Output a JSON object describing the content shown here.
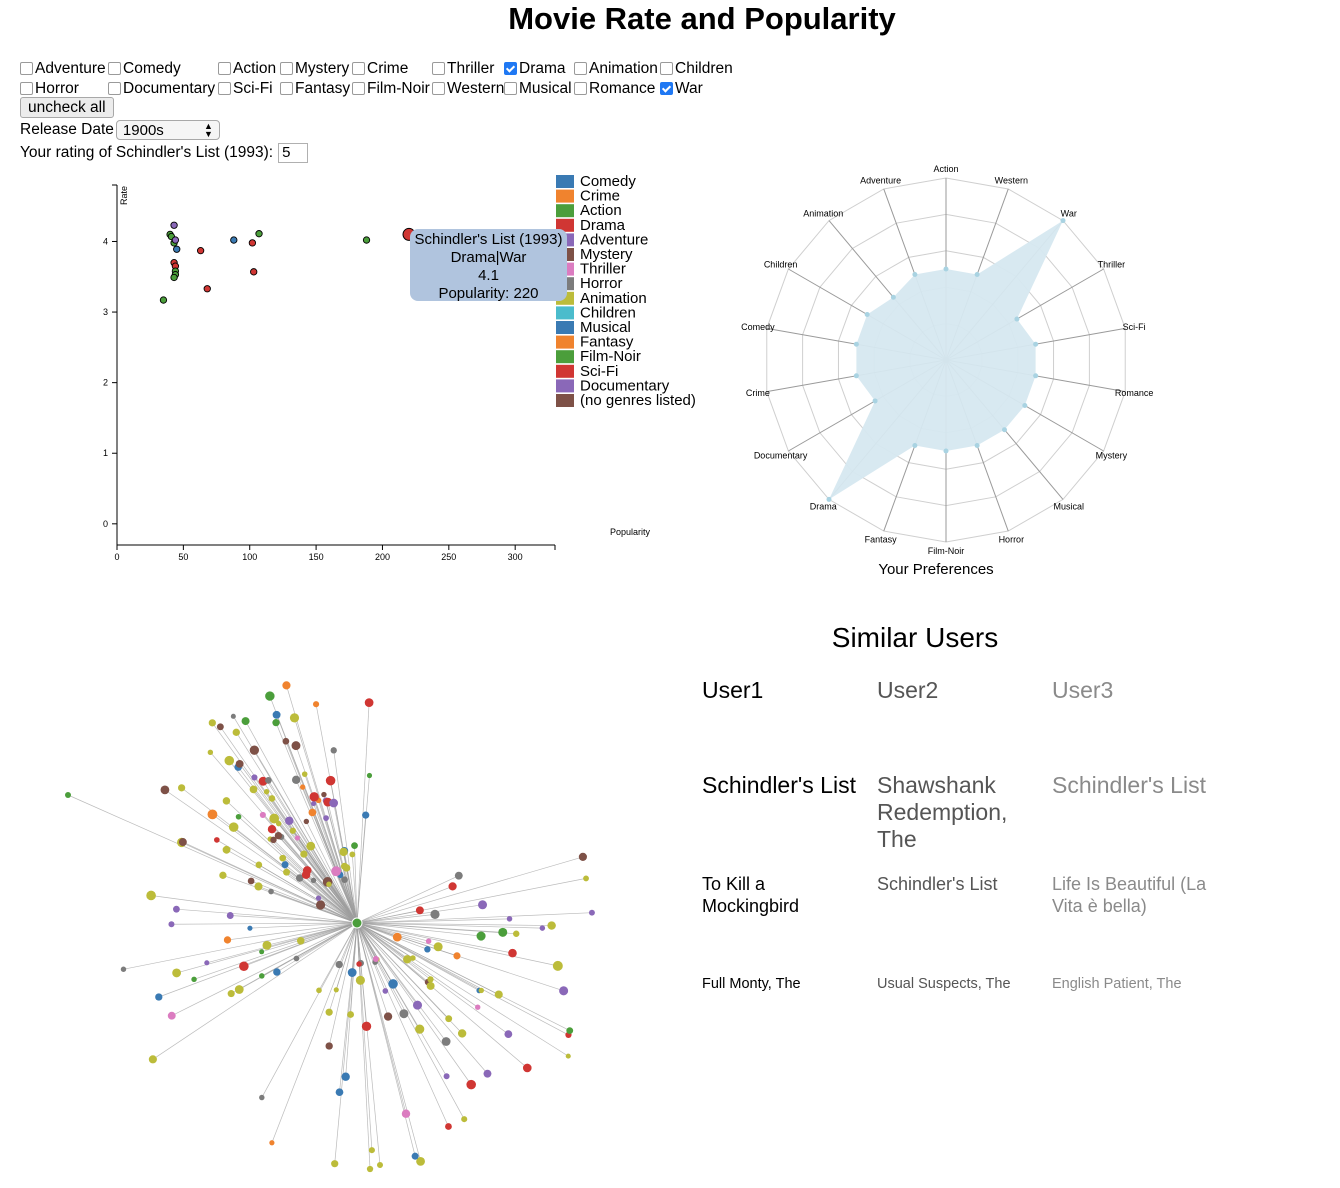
{
  "page": {
    "title": "Movie Rate and Popularity"
  },
  "genres": [
    {
      "label": "Adventure",
      "checked": false
    },
    {
      "label": "Comedy",
      "checked": false
    },
    {
      "label": "Action",
      "checked": false
    },
    {
      "label": "Mystery",
      "checked": false
    },
    {
      "label": "Crime",
      "checked": false
    },
    {
      "label": "Thriller",
      "checked": false
    },
    {
      "label": "Drama",
      "checked": true
    },
    {
      "label": "Animation",
      "checked": false
    },
    {
      "label": "Children",
      "checked": false
    },
    {
      "label": "Horror",
      "checked": false
    },
    {
      "label": "Documentary",
      "checked": false
    },
    {
      "label": "Sci-Fi",
      "checked": false
    },
    {
      "label": "Fantasy",
      "checked": false
    },
    {
      "label": "Film-Noir",
      "checked": false
    },
    {
      "label": "Western",
      "checked": false
    },
    {
      "label": "Musical",
      "checked": false
    },
    {
      "label": "Romance",
      "checked": false
    },
    {
      "label": "War",
      "checked": true
    }
  ],
  "controls": {
    "uncheck_all_label": "uncheck all",
    "release_date_label": "Release Date",
    "release_date_value": "1900s",
    "rating_label": "Your rating of Schindler's List (1993):",
    "rating_value": "5"
  },
  "colors": {
    "checkbox_checked": "#1f78f3",
    "tooltip_bg": "#b0c4de",
    "radar_fill": "#d6e8f0",
    "radar_dot": "#a9d3e2"
  },
  "chart_data": [
    {
      "type": "scatter",
      "xlabel": "Popularity",
      "ylabel": "Rate",
      "xlim": [
        0,
        330
      ],
      "ylim": [
        -0.3,
        4.8
      ],
      "x_ticks": [
        0,
        50,
        100,
        150,
        200,
        250,
        300
      ],
      "y_ticks": [
        0,
        1,
        2,
        3,
        4
      ],
      "points": [
        {
          "x": 35,
          "y": 3.17,
          "genre": "Action"
        },
        {
          "x": 40,
          "y": 4.1,
          "genre": "Action"
        },
        {
          "x": 41,
          "y": 4.07,
          "genre": "Action"
        },
        {
          "x": 43,
          "y": 4.23,
          "genre": "Adventure"
        },
        {
          "x": 43,
          "y": 3.98,
          "genre": "Action"
        },
        {
          "x": 44,
          "y": 4.02,
          "genre": "Adventure"
        },
        {
          "x": 45,
          "y": 3.89,
          "genre": "Comedy"
        },
        {
          "x": 43,
          "y": 3.7,
          "genre": "Drama"
        },
        {
          "x": 44,
          "y": 3.65,
          "genre": "Drama"
        },
        {
          "x": 44,
          "y": 3.58,
          "genre": "Action"
        },
        {
          "x": 44,
          "y": 3.53,
          "genre": "Action"
        },
        {
          "x": 43,
          "y": 3.49,
          "genre": "Action"
        },
        {
          "x": 63,
          "y": 3.87,
          "genre": "Drama"
        },
        {
          "x": 68,
          "y": 3.33,
          "genre": "Drama"
        },
        {
          "x": 88,
          "y": 4.02,
          "genre": "Comedy"
        },
        {
          "x": 102,
          "y": 3.98,
          "genre": "Drama"
        },
        {
          "x": 103,
          "y": 3.57,
          "genre": "Drama"
        },
        {
          "x": 107,
          "y": 4.11,
          "genre": "Action"
        },
        {
          "x": 188,
          "y": 4.02,
          "genre": "Action"
        },
        {
          "x": 220,
          "y": 4.1,
          "genre": "Drama",
          "highlight": true
        }
      ],
      "legend": [
        {
          "label": "Comedy",
          "color": "#3a7ab3"
        },
        {
          "label": "Crime",
          "color": "#f0832e"
        },
        {
          "label": "Action",
          "color": "#4b9e3b"
        },
        {
          "label": "Drama",
          "color": "#d03633"
        },
        {
          "label": "Adventure",
          "color": "#8a68b8"
        },
        {
          "label": "Mystery",
          "color": "#7e5147"
        },
        {
          "label": "Thriller",
          "color": "#db7cc0"
        },
        {
          "label": "Horror",
          "color": "#7c7c7c"
        },
        {
          "label": "Animation",
          "color": "#bcbc3a"
        },
        {
          "label": "Children",
          "color": "#4bbccc"
        },
        {
          "label": "Musical",
          "color": "#3a7ab3"
        },
        {
          "label": "Fantasy",
          "color": "#f0832e"
        },
        {
          "label": "Film-Noir",
          "color": "#4b9e3b"
        },
        {
          "label": "Sci-Fi",
          "color": "#d03633"
        },
        {
          "label": "Documentary",
          "color": "#8a68b8"
        },
        {
          "label": "(no genres listed)",
          "color": "#7e5147"
        }
      ],
      "tooltip": {
        "title": "Schindler's List (1993)",
        "genres": "Drama|War",
        "rate": "4.1",
        "popularity": "Popularity: 220"
      }
    },
    {
      "type": "radar",
      "caption": "Your Preferences",
      "axes": [
        "Action",
        "Western",
        "War",
        "Thriller",
        "Sci-Fi",
        "Romance",
        "Mystery",
        "Musical",
        "Horror",
        "Film-Noir",
        "Fantasy",
        "Drama",
        "Documentary",
        "Crime",
        "Comedy",
        "Children",
        "Animation",
        "Adventure"
      ],
      "values": [
        0.5,
        0.5,
        1.0,
        0.45,
        0.5,
        0.5,
        0.5,
        0.5,
        0.5,
        0.5,
        0.5,
        1.0,
        0.45,
        0.5,
        0.5,
        0.5,
        0.45,
        0.5
      ],
      "levels": 5
    }
  ],
  "network": {
    "center_color": "#4b9e3b"
  },
  "similar_users": {
    "title": "Similar Users",
    "users": [
      {
        "name": "User1",
        "movies": [
          "Schindler's List",
          "To Kill a Mockingbird",
          "Full Monty, The"
        ]
      },
      {
        "name": "User2",
        "movies": [
          "Shawshank Redemption, The",
          "Schindler's List",
          "Usual Suspects, The"
        ]
      },
      {
        "name": "User3",
        "movies": [
          "Schindler's List",
          "Life Is Beautiful (La Vita è bella)",
          "English Patient, The"
        ]
      }
    ]
  }
}
